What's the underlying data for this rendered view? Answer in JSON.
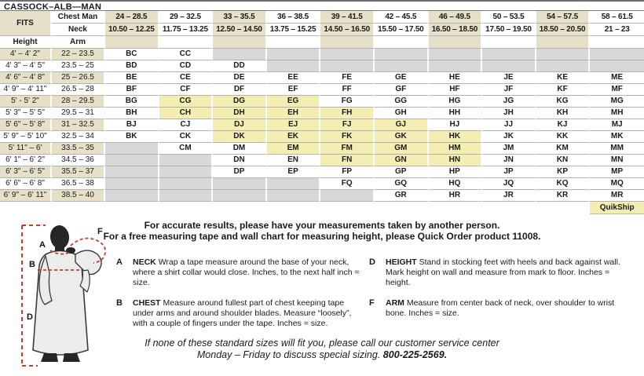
{
  "title": "CASSOCK–ALB—MAN",
  "colors": {
    "header_beige": "#e6e0c8",
    "quikship_yellow": "#f5eeb2",
    "unavailable_gray": "#d8d8d8",
    "figure_red": "#c93b2b"
  },
  "size_table": {
    "fits_label": "FITS",
    "chest_row_label": "Chest Man",
    "neck_row_label": "Neck",
    "height_col_label": "Height",
    "arm_col_label": "Arm",
    "chest_ranges": [
      "24 – 28.5",
      "29 – 32.5",
      "33 – 35.5",
      "36 – 38.5",
      "39 – 41.5",
      "42 – 45.5",
      "46 – 49.5",
      "50 – 53.5",
      "54 – 57.5",
      "58 – 61.5"
    ],
    "neck_ranges": [
      "10.50 – 12.25",
      "11.75 – 13.25",
      "12.50 – 14.50",
      "13.75 – 15.25",
      "14.50 – 16.50",
      "15.50 – 17.50",
      "16.50 – 18.50",
      "17.50 – 19.50",
      "18.50 – 20.50",
      "21 – 23"
    ],
    "rows": [
      {
        "height": "4' – 4' 2\"",
        "arm": "22 – 23.5",
        "sizes": [
          "BC",
          "CC",
          "",
          "",
          "",
          "",
          "",
          "",
          "",
          ""
        ]
      },
      {
        "height": "4' 3\" – 4' 5\"",
        "arm": "23.5 – 25",
        "sizes": [
          "BD",
          "CD",
          "DD",
          "",
          "",
          "",
          "",
          "",
          "",
          ""
        ]
      },
      {
        "height": "4' 6\" – 4' 8\"",
        "arm": "25 – 26.5",
        "sizes": [
          "BE",
          "CE",
          "DE",
          "EE",
          "FE",
          "GE",
          "HE",
          "JE",
          "KE",
          "ME"
        ]
      },
      {
        "height": "4' 9\" – 4' 11\"",
        "arm": "26.5 – 28",
        "sizes": [
          "BF",
          "CF",
          "DF",
          "EF",
          "FF",
          "GF",
          "HF",
          "JF",
          "KF",
          "MF"
        ]
      },
      {
        "height": "5' - 5' 2\"",
        "arm": "28 – 29.5",
        "sizes": [
          "BG",
          "CG",
          "DG",
          "EG",
          "FG",
          "GG",
          "HG",
          "JG",
          "KG",
          "MG"
        ]
      },
      {
        "height": "5' 3\" – 5' 5\"",
        "arm": "29.5 – 31",
        "sizes": [
          "BH",
          "CH",
          "DH",
          "EH",
          "FH",
          "GH",
          "HH",
          "JH",
          "KH",
          "MH"
        ]
      },
      {
        "height": "5' 6\" – 5' 8\"",
        "arm": "31 – 32.5",
        "sizes": [
          "BJ",
          "CJ",
          "DJ",
          "EJ",
          "FJ",
          "GJ",
          "HJ",
          "JJ",
          "KJ",
          "MJ"
        ]
      },
      {
        "height": "5' 9\" – 5' 10\"",
        "arm": "32.5 – 34",
        "sizes": [
          "BK",
          "CK",
          "DK",
          "EK",
          "FK",
          "GK",
          "HK",
          "JK",
          "KK",
          "MK"
        ]
      },
      {
        "height": "5' 11\" – 6'",
        "arm": "33.5 – 35",
        "sizes": [
          "",
          "CM",
          "DM",
          "EM",
          "FM",
          "GM",
          "HM",
          "JM",
          "KM",
          "MM"
        ]
      },
      {
        "height": "6' 1\" – 6' 2\"",
        "arm": "34.5 – 36",
        "sizes": [
          "",
          "",
          "DN",
          "EN",
          "FN",
          "GN",
          "HN",
          "JN",
          "KN",
          "MN"
        ]
      },
      {
        "height": "6' 3\" – 6' 5\"",
        "arm": "35.5 – 37",
        "sizes": [
          "",
          "",
          "DP",
          "EP",
          "FP",
          "GP",
          "HP",
          "JP",
          "KP",
          "MP"
        ]
      },
      {
        "height": "6' 6\" – 6' 8\"",
        "arm": "36.5 – 38",
        "sizes": [
          "",
          "",
          "",
          "",
          "FQ",
          "GQ",
          "HQ",
          "JQ",
          "KQ",
          "MQ"
        ]
      },
      {
        "height": "6' 9\" – 6' 11\"",
        "arm": "38.5 – 40",
        "sizes": [
          "",
          "",
          "",
          "",
          "",
          "GR",
          "HR",
          "JR",
          "KR",
          "MR"
        ]
      }
    ],
    "quikship_sizes": [
      "CG",
      "DG",
      "EG",
      "CH",
      "DH",
      "EH",
      "FH",
      "DJ",
      "EJ",
      "FJ",
      "GJ",
      "DK",
      "EK",
      "FK",
      "GK",
      "HK",
      "EM",
      "FM",
      "GM",
      "HM",
      "FN",
      "GN",
      "HN"
    ],
    "quikship_label": "QuikShip"
  },
  "intro": {
    "line1": "For accurate results, please have your measurements taken by another person.",
    "line2": "For a free measuring tape and wall chart for measuring height, please Quick Order product 11008."
  },
  "instructions": [
    {
      "letter": "A",
      "keyword": "NECK",
      "text": "Wrap a tape measure around the base of your neck, where a shirt collar would close. Inches, to the next half inch = size."
    },
    {
      "letter": "B",
      "keyword": "CHEST",
      "text": "Measure around fullest part of chest keeping tape under arms and around shoulder blades. Measure “loosely”, with a couple of fingers under the tape. Inches = size."
    },
    {
      "letter": "D",
      "keyword": "HEIGHT",
      "text": "Stand in stocking feet with heels and back against wall. Mark height on wall and measure from mark to floor. Inches = height."
    },
    {
      "letter": "F",
      "keyword": "ARM",
      "text": "Measure from center back of neck, over shoulder to wrist bone. Inches = size."
    }
  ],
  "figure_labels": {
    "neck": "A",
    "chest": "B",
    "height": "D",
    "arm": "F"
  },
  "footer": {
    "line1": "If none of these standard sizes will fit you, please call our customer service center",
    "line2_prefix": "Monday – Friday to discuss special sizing. ",
    "phone": "800-225-2569."
  }
}
